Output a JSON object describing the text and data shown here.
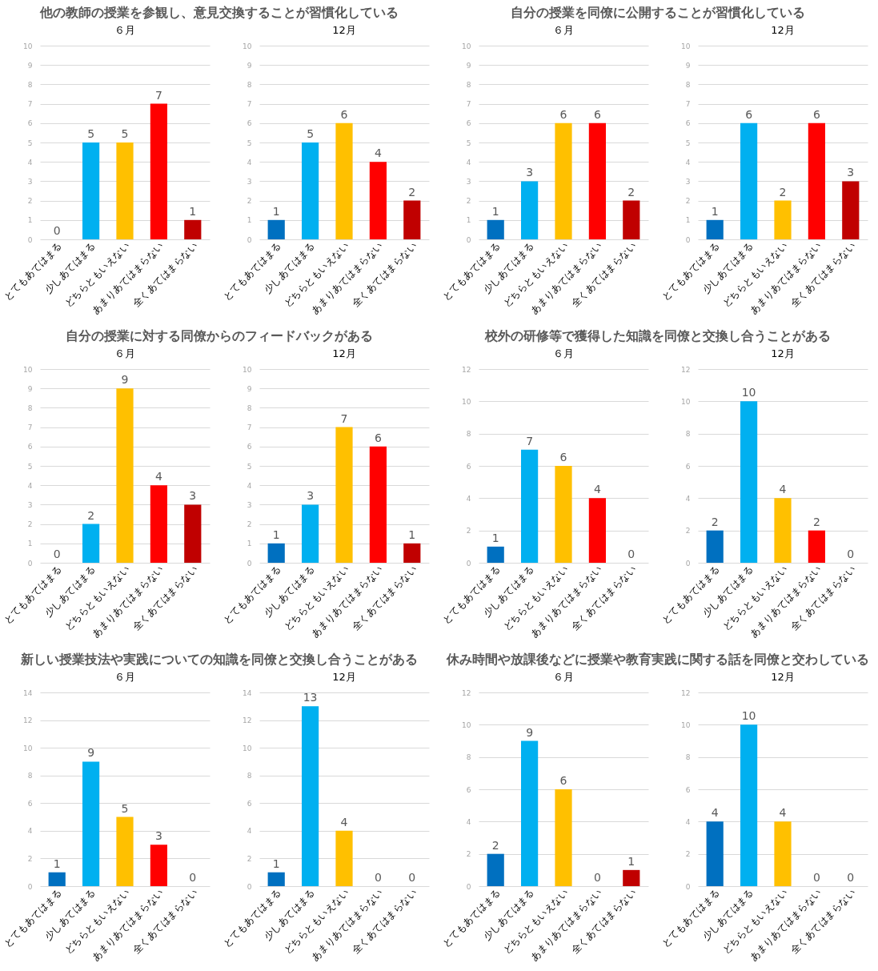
{
  "chart_data": [
    {
      "type": "bar",
      "title": "他の教師の授業を参観し、意見交換することが習慣化している",
      "subtitle": "６月",
      "categories": [
        "とてもあてはまる",
        "少しあてはまる",
        "どちらともいえない",
        "あまりあてはまらない",
        "全くあてはまらない"
      ],
      "values": [
        0,
        5,
        5,
        7,
        1
      ],
      "colors": [
        "#0070c0",
        "#00b0f0",
        "#ffc000",
        "#ff0000",
        "#c00000"
      ],
      "ylim": [
        0,
        10
      ],
      "yticks": [
        0,
        1,
        2,
        3,
        4,
        5,
        6,
        7,
        8,
        9,
        10
      ],
      "grid": "y",
      "data_labels": true
    },
    {
      "type": "bar",
      "subtitle": "12月",
      "categories": [
        "とてもあてはまる",
        "少しあてはまる",
        "どちらともいえない",
        "あまりあてはまらない",
        "全くあてはまらない"
      ],
      "values": [
        1,
        5,
        6,
        4,
        2
      ],
      "colors": [
        "#0070c0",
        "#00b0f0",
        "#ffc000",
        "#ff0000",
        "#c00000"
      ],
      "ylim": [
        0,
        10
      ],
      "yticks": [
        0,
        1,
        2,
        3,
        4,
        5,
        6,
        7,
        8,
        9,
        10
      ],
      "grid": "y",
      "data_labels": true
    },
    {
      "type": "bar",
      "title": "自分の授業を同僚に公開することが習慣化している",
      "subtitle": "６月",
      "categories": [
        "とてもあてはまる",
        "少しあてはまる",
        "どちらともいえない",
        "あまりあてはまらない",
        "全くあてはまらない"
      ],
      "values": [
        1,
        3,
        6,
        6,
        2
      ],
      "colors": [
        "#0070c0",
        "#00b0f0",
        "#ffc000",
        "#ff0000",
        "#c00000"
      ],
      "ylim": [
        0,
        10
      ],
      "yticks": [
        0,
        1,
        2,
        3,
        4,
        5,
        6,
        7,
        8,
        9,
        10
      ],
      "grid": "y",
      "data_labels": true
    },
    {
      "type": "bar",
      "subtitle": "12月",
      "categories": [
        "とてもあてはまる",
        "少しあてはまる",
        "どちらともいえない",
        "あまりあてはまらない",
        "全くあてはまらない"
      ],
      "values": [
        1,
        6,
        2,
        6,
        3
      ],
      "colors": [
        "#0070c0",
        "#00b0f0",
        "#ffc000",
        "#ff0000",
        "#c00000"
      ],
      "ylim": [
        0,
        10
      ],
      "yticks": [
        0,
        1,
        2,
        3,
        4,
        5,
        6,
        7,
        8,
        9,
        10
      ],
      "grid": "y",
      "data_labels": true
    },
    {
      "type": "bar",
      "title": "自分の授業に対する同僚からのフィードバックがある",
      "subtitle": "６月",
      "categories": [
        "とてもあてはまる",
        "少しあてはまる",
        "どちらともいえない",
        "あまりあてはまらない",
        "全くあてはまらない"
      ],
      "values": [
        0,
        2,
        9,
        4,
        3
      ],
      "colors": [
        "#0070c0",
        "#00b0f0",
        "#ffc000",
        "#ff0000",
        "#c00000"
      ],
      "ylim": [
        0,
        10
      ],
      "yticks": [
        0,
        1,
        2,
        3,
        4,
        5,
        6,
        7,
        8,
        9,
        10
      ],
      "grid": "y",
      "data_labels": true
    },
    {
      "type": "bar",
      "subtitle": "12月",
      "categories": [
        "とてもあてはまる",
        "少しあてはまる",
        "どちらともいえない",
        "あまりあてはまらない",
        "全くあてはまらない"
      ],
      "values": [
        1,
        3,
        7,
        6,
        1
      ],
      "colors": [
        "#0070c0",
        "#00b0f0",
        "#ffc000",
        "#ff0000",
        "#c00000"
      ],
      "ylim": [
        0,
        10
      ],
      "yticks": [
        0,
        1,
        2,
        3,
        4,
        5,
        6,
        7,
        8,
        9,
        10
      ],
      "grid": "y",
      "data_labels": true
    },
    {
      "type": "bar",
      "title": "校外の研修等で獲得した知識を同僚と交換し合うことがある",
      "subtitle": "６月",
      "categories": [
        "とてもあてはまる",
        "少しあてはまる",
        "どちらともいえない",
        "あまりあてはまらない",
        "全くあてはまらない"
      ],
      "values": [
        1,
        7,
        6,
        4,
        0
      ],
      "colors": [
        "#0070c0",
        "#00b0f0",
        "#ffc000",
        "#ff0000",
        "#c00000"
      ],
      "ylim": [
        0,
        12
      ],
      "yticks": [
        0,
        2,
        4,
        6,
        8,
        10,
        12
      ],
      "grid": "y",
      "data_labels": true
    },
    {
      "type": "bar",
      "subtitle": "12月",
      "categories": [
        "とてもあてはまる",
        "少しあてはまる",
        "どちらともいえない",
        "あまりあてはまらない",
        "全くあてはまらない"
      ],
      "values": [
        2,
        10,
        4,
        2,
        0
      ],
      "colors": [
        "#0070c0",
        "#00b0f0",
        "#ffc000",
        "#ff0000",
        "#c00000"
      ],
      "ylim": [
        0,
        12
      ],
      "yticks": [
        0,
        2,
        4,
        6,
        8,
        10,
        12
      ],
      "grid": "y",
      "data_labels": true
    },
    {
      "type": "bar",
      "title": "新しい授業技法や実践についての知識を同僚と交換し合うことがある",
      "subtitle": "６月",
      "categories": [
        "とてもあてはまる",
        "少しあてはまる",
        "どちらともいえない",
        "あまりあてはまらない",
        "全くあてはまらない"
      ],
      "values": [
        1,
        9,
        5,
        3,
        0
      ],
      "colors": [
        "#0070c0",
        "#00b0f0",
        "#ffc000",
        "#ff0000",
        "#c00000"
      ],
      "ylim": [
        0,
        14
      ],
      "yticks": [
        0,
        2,
        4,
        6,
        8,
        10,
        12,
        14
      ],
      "grid": "y",
      "data_labels": true
    },
    {
      "type": "bar",
      "subtitle": "12月",
      "categories": [
        "とてもあてはまる",
        "少しあてはまる",
        "どちらともいえない",
        "あまりあてはまらない",
        "全くあてはまらない"
      ],
      "values": [
        1,
        13,
        4,
        0,
        0
      ],
      "colors": [
        "#0070c0",
        "#00b0f0",
        "#ffc000",
        "#ff0000",
        "#c00000"
      ],
      "ylim": [
        0,
        14
      ],
      "yticks": [
        0,
        2,
        4,
        6,
        8,
        10,
        12,
        14
      ],
      "grid": "y",
      "data_labels": true
    },
    {
      "type": "bar",
      "title": "休み時間や放課後などに授業や教育実践に関する話を同僚と交わしている",
      "subtitle": "６月",
      "categories": [
        "とてもあてはまる",
        "少しあてはまる",
        "どちらともいえない",
        "あまりあてはまらない",
        "全くあてはまらない"
      ],
      "values": [
        2,
        9,
        6,
        0,
        1
      ],
      "colors": [
        "#0070c0",
        "#00b0f0",
        "#ffc000",
        "#ff0000",
        "#c00000"
      ],
      "ylim": [
        0,
        12
      ],
      "yticks": [
        0,
        2,
        4,
        6,
        8,
        10,
        12
      ],
      "grid": "y",
      "data_labels": true
    },
    {
      "type": "bar",
      "subtitle": "12月",
      "categories": [
        "とてもあてはまる",
        "少しあてはまる",
        "どちらともいえない",
        "あまりあてはまらない",
        "全くあてはまらない"
      ],
      "values": [
        4,
        10,
        4,
        0,
        0
      ],
      "colors": [
        "#0070c0",
        "#00b0f0",
        "#ffc000",
        "#ff0000",
        "#c00000"
      ],
      "ylim": [
        0,
        12
      ],
      "yticks": [
        0,
        2,
        4,
        6,
        8,
        10,
        12
      ],
      "grid": "y",
      "data_labels": true
    }
  ]
}
